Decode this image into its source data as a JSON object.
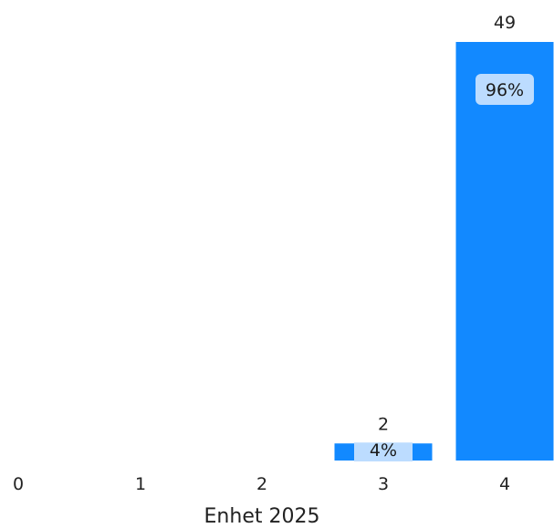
{
  "chart_data": {
    "type": "bar",
    "categories": [
      "0",
      "1",
      "2",
      "3",
      "4"
    ],
    "values": [
      0,
      0,
      0,
      2,
      49
    ],
    "percent_labels": [
      "",
      "",
      "",
      "4%",
      "96%"
    ],
    "xlabel": "Enhet 2025",
    "ylim": [
      0,
      49
    ],
    "grid": false,
    "colors": {
      "bar": "#1289ff",
      "label_box": "#bcdcff",
      "text": "#222222"
    }
  }
}
